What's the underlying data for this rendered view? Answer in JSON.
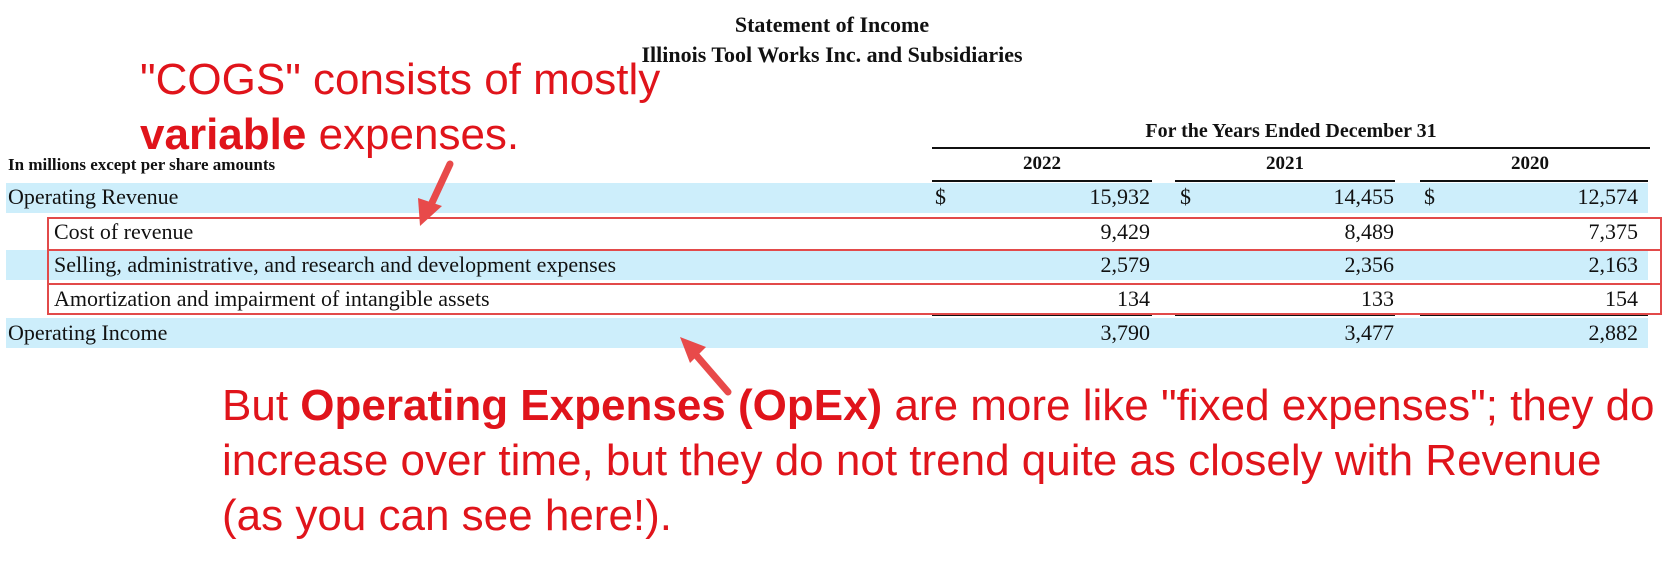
{
  "statement": {
    "title": "Statement of Income",
    "company": "Illinois Tool Works Inc. and Subsidiaries",
    "period_header": "For the Years Ended December 31",
    "units_label": "In millions except per share amounts",
    "currency_symbol": "$",
    "years": [
      "2022",
      "2021",
      "2020"
    ],
    "rows": [
      {
        "label": "Operating Revenue",
        "values": [
          "15,932",
          "14,455",
          "12,574"
        ]
      },
      {
        "label": "Cost of revenue",
        "values": [
          "9,429",
          "8,489",
          "7,375"
        ]
      },
      {
        "label": "Selling, administrative, and research and development expenses",
        "values": [
          "2,579",
          "2,356",
          "2,163"
        ]
      },
      {
        "label": "Amortization and impairment of intangible assets",
        "values": [
          "134",
          "133",
          "154"
        ]
      },
      {
        "label": "Operating Income",
        "values": [
          "3,790",
          "3,477",
          "2,882"
        ]
      }
    ]
  },
  "annotations": {
    "cogs_note": {
      "line1": "\"COGS\" consists of mostly",
      "line2_bold": "variable",
      "line2_rest": " expenses."
    },
    "opex_note": {
      "prefix": "But ",
      "bold": "Operating Expenses (OpEx)",
      "suffix": " are more like \"fixed expenses\"; they do increase over time, but they do not trend quite as closely with Revenue (as you can see here!)."
    },
    "accent_color": "#e0141b",
    "highlight_color": "#cdeefb"
  }
}
